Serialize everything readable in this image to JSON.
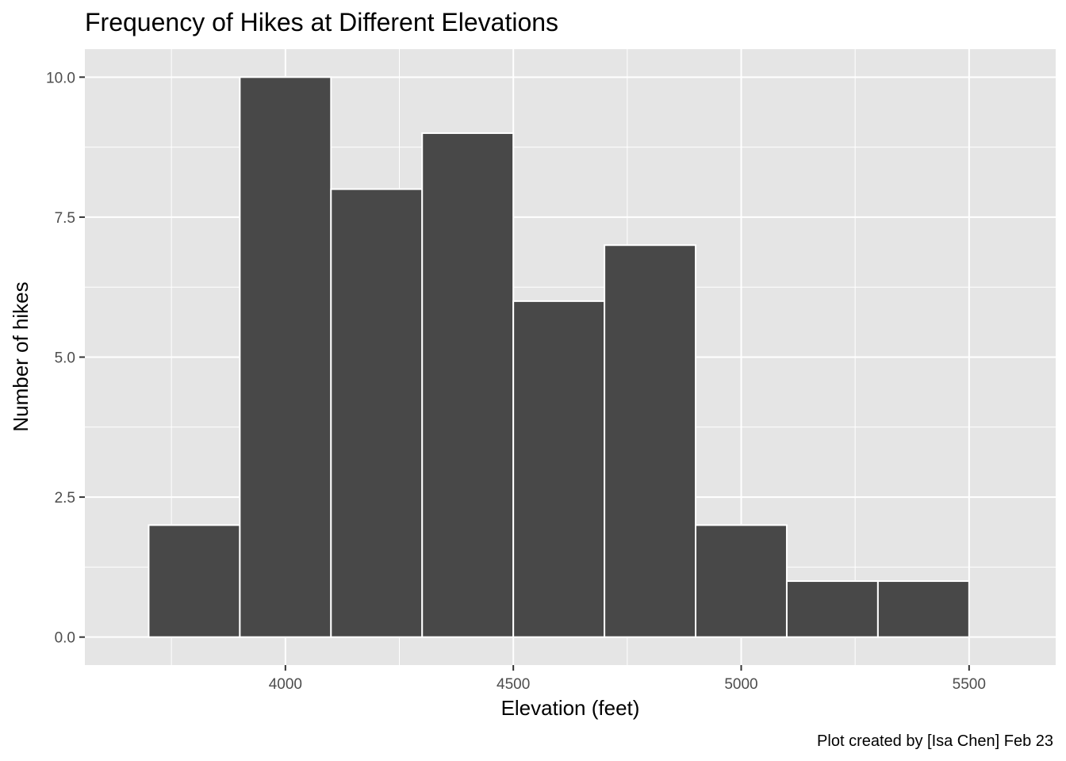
{
  "chart_data": {
    "type": "bar",
    "title": "Frequency of Hikes at Different Elevations",
    "xlabel": "Elevation (feet)",
    "ylabel": "Number of hikes",
    "caption": "Plot created by [Isa Chen] Feb 23",
    "bins": [
      {
        "x0": 3700,
        "x1": 3900,
        "count": 2
      },
      {
        "x0": 3900,
        "x1": 4100,
        "count": 10
      },
      {
        "x0": 4100,
        "x1": 4300,
        "count": 8
      },
      {
        "x0": 4300,
        "x1": 4500,
        "count": 9
      },
      {
        "x0": 4500,
        "x1": 4700,
        "count": 6
      },
      {
        "x0": 4700,
        "x1": 4900,
        "count": 7
      },
      {
        "x0": 4900,
        "x1": 5100,
        "count": 2
      },
      {
        "x0": 5100,
        "x1": 5300,
        "count": 1
      },
      {
        "x0": 5300,
        "x1": 5500,
        "count": 1
      }
    ],
    "xlim": [
      3560,
      5690
    ],
    "ylim": [
      -0.5,
      10.5
    ],
    "x_ticks": [
      4000,
      4500,
      5000,
      5500
    ],
    "x_tick_labels": [
      "4000",
      "4500",
      "5000",
      "5500"
    ],
    "y_ticks": [
      0,
      2.5,
      5,
      7.5,
      10
    ],
    "y_tick_labels": [
      "0.0",
      "2.5",
      "5.0",
      "7.5",
      "10.0"
    ],
    "grid": true,
    "legend": "none",
    "colors": {
      "bar_fill": "#484848",
      "bar_outline": "#ffffff",
      "panel_background": "#e5e5e5",
      "grid": "#ffffff"
    }
  }
}
